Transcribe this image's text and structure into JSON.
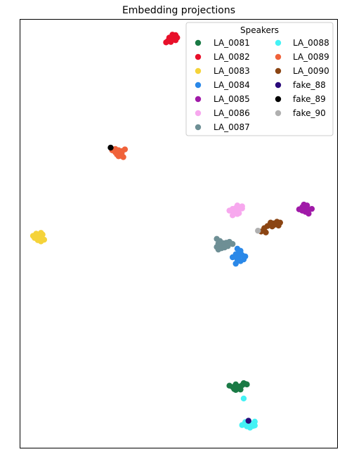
{
  "chart_data": {
    "type": "scatter",
    "title": "Embedding projections",
    "xlabel": "",
    "ylabel": "",
    "axis_ticks": "none",
    "xlim": [
      0,
      100
    ],
    "ylim": [
      0,
      100
    ],
    "grid": false,
    "legend": {
      "title": "Speakers",
      "placement": "top-right",
      "columns": 2
    },
    "series": [
      {
        "name": "LA_0081",
        "color": "#1a7a45",
        "points": [
          [
            66,
            14.5
          ],
          [
            67,
            14.2
          ],
          [
            68,
            14.8
          ],
          [
            69,
            14.3
          ],
          [
            70,
            14.6
          ],
          [
            71,
            14.9
          ],
          [
            67.5,
            13.7
          ],
          [
            69.5,
            13.6
          ],
          [
            70.5,
            15.1
          ],
          [
            68.5,
            14.0
          ],
          [
            71.5,
            14.8
          ],
          [
            68,
            13.5
          ]
        ]
      },
      {
        "name": "LA_0082",
        "color": "#e8102a",
        "points": [
          [
            46,
            94.7
          ],
          [
            47,
            95.3
          ],
          [
            48,
            95.9
          ],
          [
            49,
            96.4
          ],
          [
            47.5,
            94.8
          ],
          [
            48.5,
            95.5
          ],
          [
            49.5,
            95.8
          ],
          [
            47,
            95.8
          ],
          [
            46.5,
            95.0
          ],
          [
            48,
            96.5
          ],
          [
            47.5,
            95.5
          ],
          [
            49,
            95.2
          ]
        ]
      },
      {
        "name": "LA_0083",
        "color": "#f5d33a",
        "points": [
          [
            4,
            49.5
          ],
          [
            5,
            49.2
          ],
          [
            6,
            49.0
          ],
          [
            7,
            49.8
          ],
          [
            5.5,
            48.5
          ],
          [
            6.5,
            48.2
          ],
          [
            5,
            50.0
          ],
          [
            4.5,
            49.0
          ],
          [
            6.5,
            50.2
          ],
          [
            7.5,
            48.6
          ],
          [
            6,
            49.6
          ],
          [
            5.5,
            49.8
          ]
        ]
      },
      {
        "name": "LA_0084",
        "color": "#2a88e8",
        "points": [
          [
            67,
            44.5
          ],
          [
            68,
            45.2
          ],
          [
            69,
            44.8
          ],
          [
            70,
            45.0
          ],
          [
            71,
            44.7
          ],
          [
            68.5,
            44.0
          ],
          [
            69.5,
            43.6
          ],
          [
            68,
            43.0
          ],
          [
            70.5,
            44.0
          ],
          [
            69,
            45.5
          ],
          [
            68.5,
            46.5
          ],
          [
            69.5,
            46.0
          ]
        ]
      },
      {
        "name": "LA_0085",
        "color": "#a01aa8",
        "points": [
          [
            88,
            55.7
          ],
          [
            89,
            56.2
          ],
          [
            90,
            56.0
          ],
          [
            91,
            55.6
          ],
          [
            92,
            55.8
          ],
          [
            89.5,
            56.8
          ],
          [
            90.5,
            56.6
          ],
          [
            90,
            55.1
          ],
          [
            91,
            54.7
          ],
          [
            89,
            55.4
          ],
          [
            90.5,
            55.9
          ],
          [
            89.5,
            55.5
          ]
        ]
      },
      {
        "name": "LA_0086",
        "color": "#f7a8ee",
        "points": [
          [
            66,
            55.4
          ],
          [
            67,
            55.8
          ],
          [
            68,
            56.0
          ],
          [
            69,
            55.7
          ],
          [
            70,
            55.9
          ],
          [
            67.5,
            55.1
          ],
          [
            68.5,
            54.6
          ],
          [
            67,
            54.3
          ],
          [
            69,
            54.8
          ],
          [
            68,
            55.3
          ],
          [
            70,
            56.4
          ],
          [
            68.5,
            56.6
          ]
        ]
      },
      {
        "name": "LA_0087",
        "color": "#6e8f95",
        "points": [
          [
            62,
            46.9
          ],
          [
            63,
            47.4
          ],
          [
            64,
            47.8
          ],
          [
            65,
            47.9
          ],
          [
            66,
            48.1
          ],
          [
            67,
            47.6
          ],
          [
            62.5,
            46.3
          ],
          [
            63.5,
            46.6
          ],
          [
            64.5,
            46.8
          ],
          [
            63,
            48.3
          ],
          [
            62,
            48.8
          ],
          [
            62.5,
            47.7
          ],
          [
            65.5,
            47.1
          ]
        ]
      },
      {
        "name": "LA_0088",
        "color": "#44f2f5",
        "points": [
          [
            70,
            5.3
          ],
          [
            71,
            5.5
          ],
          [
            72,
            5.8
          ],
          [
            73,
            5.6
          ],
          [
            74,
            5.2
          ],
          [
            71.5,
            5.0
          ],
          [
            72.5,
            4.7
          ],
          [
            73.5,
            5.1
          ],
          [
            71,
            6.0
          ],
          [
            72,
            6.3
          ],
          [
            74,
            6.1
          ],
          [
            72.5,
            5.6
          ],
          [
            70.5,
            11.5
          ]
        ]
      },
      {
        "name": "LA_0089",
        "color": "#f0623a",
        "points": [
          [
            29,
            69.5
          ],
          [
            30,
            69.8
          ],
          [
            31,
            69.5
          ],
          [
            32,
            69.3
          ],
          [
            33,
            69.7
          ],
          [
            30.5,
            68.5
          ],
          [
            31.5,
            68.2
          ],
          [
            32,
            68.9
          ],
          [
            31,
            68.1
          ],
          [
            32.5,
            67.9
          ],
          [
            30,
            69.0
          ]
        ]
      },
      {
        "name": "LA_0090",
        "color": "#8b4513",
        "points": [
          [
            76,
            50.5
          ],
          [
            77,
            51.3
          ],
          [
            78,
            51.8
          ],
          [
            79,
            52.5
          ],
          [
            80,
            52.4
          ],
          [
            81,
            52.8
          ],
          [
            82,
            52.6
          ],
          [
            77.5,
            50.3
          ],
          [
            79.5,
            51.7
          ],
          [
            81.5,
            51.9
          ],
          [
            80,
            52.0
          ],
          [
            79,
            52.6
          ]
        ]
      },
      {
        "name": "fake_88",
        "color": "#2a0a7a",
        "points": [
          [
            72,
            6.3
          ]
        ]
      },
      {
        "name": "fake_89",
        "color": "#000000",
        "points": [
          [
            28.5,
            70.1
          ]
        ]
      },
      {
        "name": "fake_90",
        "color": "#b0b0b0",
        "points": [
          [
            75,
            50.7
          ]
        ]
      }
    ]
  }
}
